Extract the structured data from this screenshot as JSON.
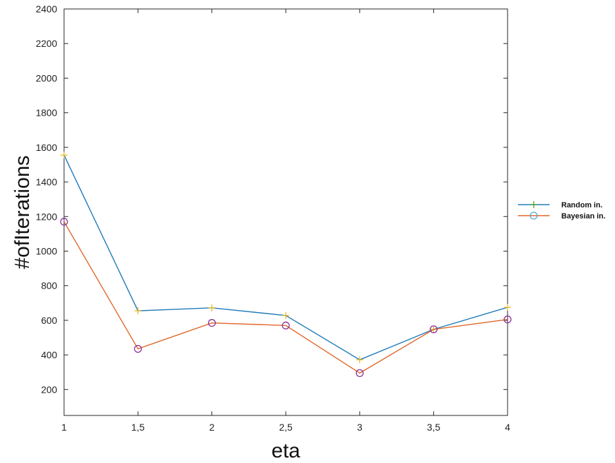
{
  "chart_data": {
    "type": "line",
    "xlabel": "eta",
    "ylabel": "#ofIterations",
    "x": [
      1,
      1.5,
      2,
      2.5,
      3,
      3.5,
      4
    ],
    "x_tick_labels": [
      "1",
      "1,5",
      "2",
      "2,5",
      "3",
      "3,5",
      "4"
    ],
    "y_ticks": [
      200,
      400,
      600,
      800,
      1000,
      1200,
      1400,
      1600,
      1800,
      2000,
      2200,
      2400
    ],
    "xlim": [
      1,
      4
    ],
    "ylim": [
      50,
      2400
    ],
    "grid": false,
    "legend_position": "right",
    "series": [
      {
        "name": "Random in.",
        "values": [
          1555,
          655,
          672,
          628,
          372,
          548,
          675
        ],
        "color": "#1f7ab8",
        "marker": "plus",
        "marker_color": "#e8b828",
        "legend_marker_color": "#4aa02c"
      },
      {
        "name": "Bayesian in.",
        "values": [
          1170,
          435,
          585,
          570,
          295,
          548,
          605
        ],
        "color": "#e06628",
        "marker": "circle",
        "marker_color": "#8b2f9a",
        "legend_marker_color": "#4da8e0"
      }
    ]
  }
}
